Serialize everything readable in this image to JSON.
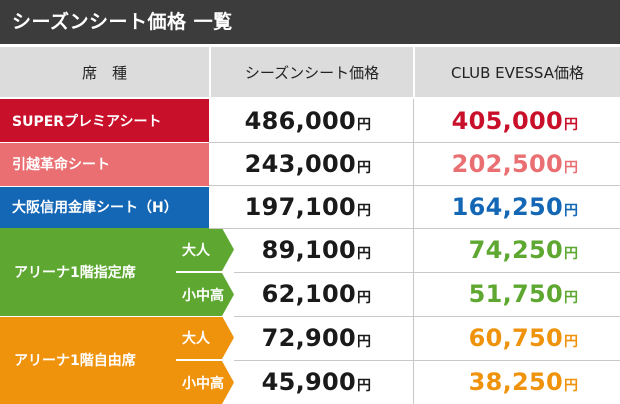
{
  "title": "シーズンシート価格 一覧",
  "headers": {
    "seat": "席　種",
    "season": "シーズンシート価格",
    "club": "CLUB EVESSA価格"
  },
  "yen": "円",
  "rows": [
    {
      "seat": "SUPERプレミアシート",
      "season": "486,000",
      "club": "405,000",
      "color": "#c9102a"
    },
    {
      "seat": "引越革命シート",
      "season": "243,000",
      "club": "202,500",
      "color": "#ea6f72"
    },
    {
      "seat": "大阪信用金庫シート（H）",
      "season": "197,100",
      "club": "164,250",
      "color": "#1467b5"
    }
  ],
  "groups": [
    {
      "label": "アリーナ1階指定席",
      "color": "#5ea832",
      "items": [
        {
          "sub": "大人",
          "season": "89,100",
          "club": "74,250"
        },
        {
          "sub": "小中高",
          "season": "62,100",
          "club": "51,750"
        }
      ]
    },
    {
      "label": "アリーナ1階自由席",
      "color": "#f0930c",
      "items": [
        {
          "sub": "大人",
          "season": "72,900",
          "club": "60,750"
        },
        {
          "sub": "小中高",
          "season": "45,900",
          "club": "38,250"
        }
      ]
    }
  ]
}
